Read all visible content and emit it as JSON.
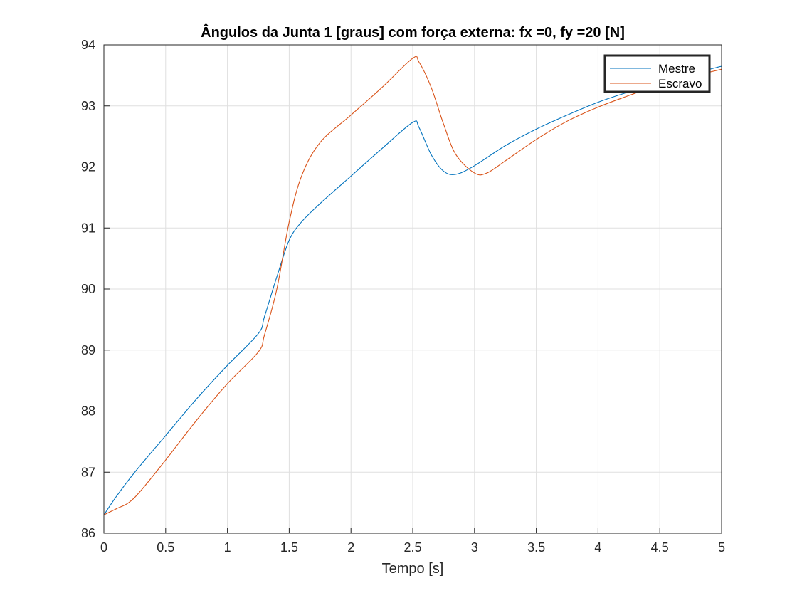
{
  "chart_data": {
    "type": "line",
    "title": "Ângulos da Junta 1 [graus] com força externa: fx =0, fy =20 [N]",
    "xlabel": "Tempo [s]",
    "ylabel": "",
    "xlim": [
      0,
      5
    ],
    "ylim": [
      86,
      94
    ],
    "xticks": [
      "0",
      "0.5",
      "1",
      "1.5",
      "2",
      "2.5",
      "3",
      "3.5",
      "4",
      "4.5",
      "5"
    ],
    "yticks": [
      "86",
      "87",
      "88",
      "89",
      "90",
      "91",
      "92",
      "93",
      "94"
    ],
    "grid": true,
    "legend_position": "top-right",
    "series": [
      {
        "name": "Mestre",
        "color": "#0072BD",
        "x": [
          0,
          0.1,
          0.25,
          0.5,
          0.75,
          1.0,
          1.25,
          1.3,
          1.4,
          1.5,
          1.6,
          1.75,
          2.0,
          2.25,
          2.5,
          2.55,
          2.65,
          2.75,
          2.85,
          3.0,
          3.25,
          3.5,
          3.75,
          4.0,
          4.25,
          4.5,
          4.75,
          5.0
        ],
        "values": [
          86.3,
          86.6,
          87.0,
          87.6,
          88.2,
          88.75,
          89.27,
          89.55,
          90.2,
          90.8,
          91.1,
          91.4,
          91.85,
          92.3,
          92.73,
          92.65,
          92.2,
          91.93,
          91.88,
          92.02,
          92.35,
          92.62,
          92.85,
          93.06,
          93.23,
          93.38,
          93.52,
          93.65
        ]
      },
      {
        "name": "Escravo",
        "color": "#D95319",
        "x": [
          0,
          0.1,
          0.2,
          0.3,
          0.5,
          0.75,
          1.0,
          1.25,
          1.3,
          1.4,
          1.5,
          1.6,
          1.75,
          2.0,
          2.25,
          2.5,
          2.55,
          2.65,
          2.75,
          2.85,
          3.0,
          3.1,
          3.25,
          3.5,
          3.75,
          4.0,
          4.25,
          4.5,
          4.75,
          5.0
        ],
        "values": [
          86.3,
          86.4,
          86.5,
          86.7,
          87.2,
          87.85,
          88.45,
          88.97,
          89.25,
          90.0,
          91.1,
          91.85,
          92.4,
          92.85,
          93.3,
          93.78,
          93.72,
          93.3,
          92.7,
          92.2,
          91.9,
          91.9,
          92.1,
          92.45,
          92.75,
          92.98,
          93.17,
          93.35,
          93.48,
          93.6
        ]
      }
    ]
  }
}
